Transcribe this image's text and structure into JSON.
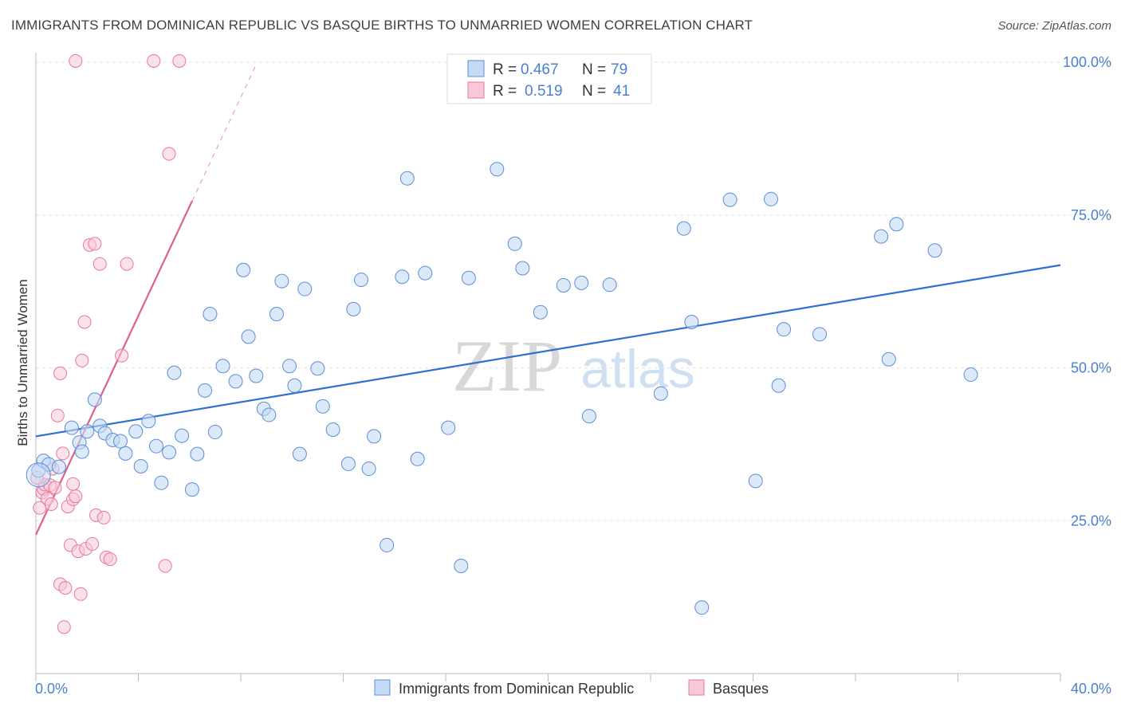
{
  "title": "IMMIGRANTS FROM DOMINICAN REPUBLIC VS BASQUE BIRTHS TO UNMARRIED WOMEN CORRELATION CHART",
  "source": "Source: ZipAtlas.com",
  "watermark": {
    "zip": "ZIP",
    "atlas": "atlas"
  },
  "colors": {
    "blue": "#5b8ed6",
    "blue_fill": "#c5daf5",
    "blue_line": "#2f6fd0",
    "pink": "#e7789a",
    "pink_fill": "#f8c9d8",
    "pink_line": "#e0608c",
    "axis_label": "#4a7fd1"
  },
  "chart_data": {
    "type": "scatter",
    "xlabel": "",
    "ylabel": "Births to Unmarried Women",
    "xlim": [
      0,
      40
    ],
    "ylim": [
      0,
      100
    ],
    "x_tick_labels": [
      "0.0%",
      "40.0%"
    ],
    "y_ticks": [
      25,
      50,
      75,
      100
    ],
    "y_tick_labels": [
      "25.0%",
      "50.0%",
      "75.0%",
      "100.0%"
    ],
    "grid": true,
    "legend_position": "top-center",
    "legend": [
      {
        "r_label": "R = ",
        "r_value": "0.467",
        "n_label": "N = ",
        "n_value": "79"
      },
      {
        "r_label": "R = ",
        "r_value": "0.519",
        "n_label": "N = ",
        "n_value": "41"
      }
    ],
    "series": [
      {
        "name": "Immigrants from Dominican Republic",
        "color": "#5b8ed6",
        "trend": {
          "x": [
            0,
            40
          ],
          "y": [
            38.8,
            66.8
          ]
        },
        "points": [
          [
            0.1,
            33.2
          ],
          [
            0.3,
            34.8
          ],
          [
            0.5,
            34.2
          ],
          [
            0.9,
            33.8
          ],
          [
            1.7,
            37.8
          ],
          [
            1.8,
            36.3
          ],
          [
            1.4,
            40.2
          ],
          [
            2.0,
            39.6
          ],
          [
            2.3,
            44.8
          ],
          [
            2.5,
            40.5
          ],
          [
            2.7,
            39.3
          ],
          [
            3.0,
            38.2
          ],
          [
            3.3,
            38.0
          ],
          [
            3.5,
            36.0
          ],
          [
            3.9,
            39.6
          ],
          [
            4.1,
            33.9
          ],
          [
            4.4,
            41.3
          ],
          [
            4.7,
            37.2
          ],
          [
            4.9,
            31.2
          ],
          [
            5.2,
            36.2
          ],
          [
            5.4,
            49.2
          ],
          [
            5.7,
            38.9
          ],
          [
            6.1,
            30.1
          ],
          [
            6.3,
            35.9
          ],
          [
            6.6,
            46.3
          ],
          [
            6.8,
            58.8
          ],
          [
            7.0,
            39.5
          ],
          [
            7.3,
            50.3
          ],
          [
            7.8,
            47.8
          ],
          [
            8.1,
            66.0
          ],
          [
            8.3,
            55.1
          ],
          [
            8.6,
            48.7
          ],
          [
            8.9,
            43.3
          ],
          [
            9.1,
            42.3
          ],
          [
            9.4,
            58.8
          ],
          [
            9.6,
            64.2
          ],
          [
            9.9,
            50.3
          ],
          [
            10.1,
            47.1
          ],
          [
            10.3,
            35.9
          ],
          [
            10.5,
            62.9
          ],
          [
            11.0,
            49.9
          ],
          [
            11.2,
            43.7
          ],
          [
            11.6,
            39.9
          ],
          [
            12.2,
            34.3
          ],
          [
            12.4,
            59.6
          ],
          [
            12.7,
            64.4
          ],
          [
            13.0,
            33.5
          ],
          [
            13.2,
            38.8
          ],
          [
            13.7,
            21.0
          ],
          [
            14.3,
            64.9
          ],
          [
            14.5,
            81.0
          ],
          [
            14.9,
            35.1
          ],
          [
            15.2,
            65.5
          ],
          [
            16.1,
            40.2
          ],
          [
            16.6,
            17.6
          ],
          [
            16.9,
            64.7
          ],
          [
            18.0,
            82.5
          ],
          [
            18.7,
            70.3
          ],
          [
            19.0,
            66.3
          ],
          [
            19.7,
            59.1
          ],
          [
            20.6,
            63.5
          ],
          [
            21.3,
            63.9
          ],
          [
            21.6,
            42.1
          ],
          [
            22.4,
            63.6
          ],
          [
            24.4,
            45.8
          ],
          [
            25.3,
            72.8
          ],
          [
            25.6,
            57.5
          ],
          [
            26.0,
            10.8
          ],
          [
            27.1,
            77.5
          ],
          [
            28.1,
            31.5
          ],
          [
            28.7,
            77.6
          ],
          [
            29.0,
            47.1
          ],
          [
            29.2,
            56.3
          ],
          [
            30.6,
            55.5
          ],
          [
            33.0,
            71.5
          ],
          [
            33.3,
            51.4
          ],
          [
            33.6,
            73.5
          ],
          [
            35.1,
            69.2
          ],
          [
            36.5,
            48.9
          ]
        ]
      },
      {
        "name": "Basques",
        "color": "#e7789a",
        "trend": {
          "x": [
            0,
            6.1
          ],
          "y": [
            22.7,
            77.3
          ],
          "ext_x": [
            6.1,
            8.6
          ],
          "ext_y": [
            77.3,
            99.6
          ]
        },
        "points": [
          [
            0.15,
            27.1
          ],
          [
            0.25,
            29.6
          ],
          [
            0.3,
            30.2
          ],
          [
            0.35,
            30.9
          ],
          [
            0.45,
            28.6
          ],
          [
            0.55,
            30.8
          ],
          [
            0.6,
            27.7
          ],
          [
            0.65,
            33.5
          ],
          [
            0.75,
            30.4
          ],
          [
            0.85,
            42.2
          ],
          [
            0.95,
            14.6
          ],
          [
            0.95,
            49.1
          ],
          [
            1.05,
            36.0
          ],
          [
            1.1,
            7.6
          ],
          [
            1.15,
            14.0
          ],
          [
            1.25,
            27.3
          ],
          [
            1.35,
            21.0
          ],
          [
            1.45,
            28.5
          ],
          [
            1.45,
            31.0
          ],
          [
            1.55,
            29.0
          ],
          [
            1.55,
            100.2
          ],
          [
            1.65,
            20.0
          ],
          [
            1.75,
            13.0
          ],
          [
            1.8,
            51.2
          ],
          [
            1.9,
            57.5
          ],
          [
            1.95,
            20.4
          ],
          [
            2.1,
            70.1
          ],
          [
            2.2,
            21.2
          ],
          [
            2.3,
            70.3
          ],
          [
            2.35,
            25.9
          ],
          [
            2.5,
            67.0
          ],
          [
            2.65,
            25.5
          ],
          [
            2.75,
            19.0
          ],
          [
            2.9,
            18.7
          ],
          [
            3.35,
            52.0
          ],
          [
            3.55,
            67.0
          ],
          [
            4.6,
            100.2
          ],
          [
            5.05,
            17.6
          ],
          [
            5.2,
            85.0
          ],
          [
            5.6,
            100.2
          ],
          [
            0.05,
            32.0
          ]
        ]
      }
    ]
  }
}
